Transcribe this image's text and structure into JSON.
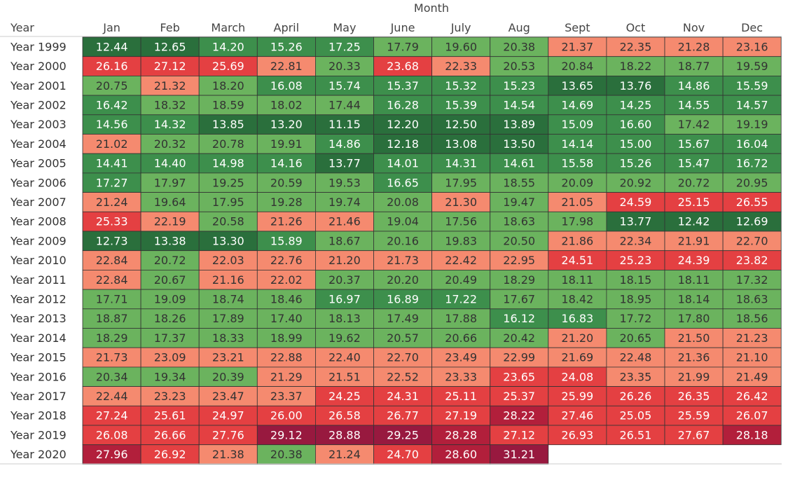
{
  "chart_data": {
    "type": "heatmap",
    "column_header": "Month",
    "row_header": "Year",
    "columns": [
      "Jan",
      "Feb",
      "March",
      "April",
      "May",
      "June",
      "July",
      "Aug",
      "Sept",
      "Oct",
      "Nov",
      "Dec"
    ],
    "rows": [
      "Year 1999",
      "Year 2000",
      "Year 2001",
      "Year 2002",
      "Year 2003",
      "Year 2004",
      "Year 2005",
      "Year 2006",
      "Year 2007",
      "Year 2008",
      "Year 2009",
      "Year 2010",
      "Year 2011",
      "Year 2012",
      "Year 2013",
      "Year 2014",
      "Year 2015",
      "Year 2016",
      "Year 2017",
      "Year 2018",
      "Year 2019",
      "Year 2020"
    ],
    "values": [
      [
        12.44,
        12.65,
        14.2,
        15.26,
        17.25,
        17.79,
        19.6,
        20.38,
        21.37,
        22.35,
        21.28,
        23.16
      ],
      [
        26.16,
        27.12,
        25.69,
        22.81,
        20.33,
        23.68,
        22.33,
        20.53,
        20.84,
        18.22,
        18.77,
        19.59
      ],
      [
        20.75,
        21.32,
        18.2,
        16.08,
        15.74,
        15.37,
        15.32,
        15.23,
        13.65,
        13.76,
        14.86,
        15.59
      ],
      [
        16.42,
        18.32,
        18.59,
        18.02,
        17.44,
        16.28,
        15.39,
        14.54,
        14.69,
        14.25,
        14.55,
        14.57
      ],
      [
        14.56,
        14.32,
        13.85,
        13.2,
        11.15,
        12.2,
        12.5,
        13.89,
        15.09,
        16.6,
        17.42,
        19.19
      ],
      [
        21.02,
        20.32,
        20.78,
        19.91,
        14.86,
        12.18,
        13.08,
        13.5,
        14.14,
        15.0,
        15.67,
        16.04
      ],
      [
        14.41,
        14.4,
        14.98,
        14.16,
        13.77,
        14.01,
        14.31,
        14.61,
        15.58,
        15.26,
        15.47,
        16.72
      ],
      [
        17.27,
        17.97,
        19.25,
        20.59,
        19.53,
        16.65,
        17.95,
        18.55,
        20.09,
        20.92,
        20.72,
        20.95
      ],
      [
        21.24,
        19.64,
        17.95,
        19.28,
        19.74,
        20.08,
        21.3,
        19.47,
        21.05,
        24.59,
        25.15,
        26.55
      ],
      [
        25.33,
        22.19,
        20.58,
        21.26,
        21.46,
        19.04,
        17.56,
        18.63,
        17.98,
        13.77,
        12.42,
        12.69
      ],
      [
        12.73,
        13.38,
        13.3,
        15.89,
        18.67,
        20.16,
        19.83,
        20.5,
        21.86,
        22.34,
        21.91,
        22.7
      ],
      [
        22.84,
        20.72,
        22.03,
        22.76,
        21.2,
        21.73,
        22.42,
        22.95,
        24.51,
        25.23,
        24.39,
        23.82
      ],
      [
        22.84,
        20.67,
        21.16,
        22.02,
        20.37,
        20.2,
        20.49,
        18.29,
        18.11,
        18.15,
        18.11,
        17.32
      ],
      [
        17.71,
        19.09,
        18.74,
        18.46,
        16.97,
        16.89,
        17.22,
        17.67,
        18.42,
        18.95,
        18.14,
        18.63
      ],
      [
        18.87,
        18.26,
        17.89,
        17.4,
        18.13,
        17.49,
        17.88,
        16.12,
        16.83,
        17.72,
        17.8,
        18.56
      ],
      [
        18.29,
        17.37,
        18.33,
        18.99,
        19.62,
        20.57,
        20.66,
        20.42,
        21.2,
        20.65,
        21.5,
        21.23
      ],
      [
        21.73,
        23.09,
        23.21,
        22.88,
        22.4,
        22.7,
        23.49,
        22.99,
        21.69,
        22.48,
        21.36,
        21.1
      ],
      [
        20.34,
        19.34,
        20.39,
        21.29,
        21.51,
        22.52,
        23.33,
        23.65,
        24.08,
        23.35,
        21.99,
        21.49
      ],
      [
        22.44,
        23.23,
        23.47,
        23.37,
        24.25,
        24.31,
        25.11,
        25.37,
        25.99,
        26.26,
        26.35,
        26.42
      ],
      [
        27.24,
        25.61,
        24.97,
        26.0,
        26.58,
        26.77,
        27.19,
        28.22,
        27.46,
        25.05,
        25.59,
        26.07
      ],
      [
        26.08,
        26.66,
        27.76,
        29.12,
        28.88,
        29.25,
        28.28,
        27.12,
        26.93,
        26.51,
        27.67,
        28.18
      ],
      [
        27.96,
        26.92,
        21.38,
        20.38,
        21.24,
        24.7,
        28.6,
        31.21,
        null,
        null,
        null,
        null
      ]
    ],
    "colors": {
      "dark_green": "#2a6f3c",
      "mid_green": "#3d8f4c",
      "light_green": "#6bb35e",
      "salmon": "#f58a6f",
      "red": "#e44042",
      "dark_red": "#b21f3b",
      "crimson": "#98193f",
      "text_light": "#ffffff",
      "text_dark": "#333333",
      "cell_border": "#333333"
    }
  }
}
